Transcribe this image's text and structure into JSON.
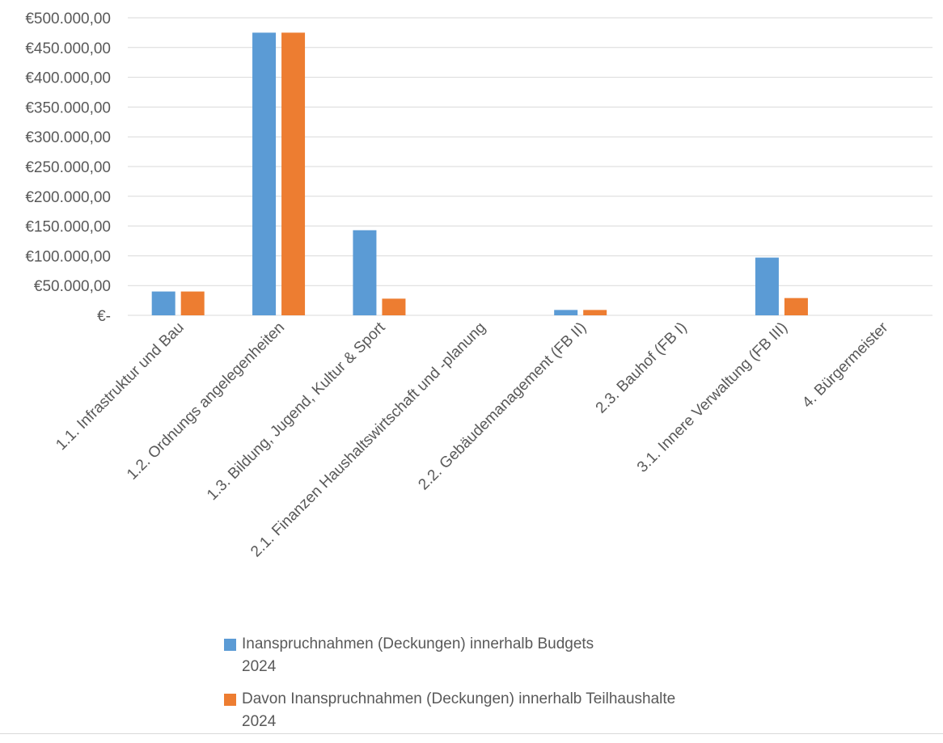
{
  "chart_data": {
    "type": "bar",
    "categories": [
      "1.1. Infrastruktur und Bau",
      "1.2. Ordnungs angelegenheiten",
      "1.3. Bildung, Jugend, Kultur & Sport",
      "2.1. Finanzen Haushaltswirtschaft  und -planung",
      "2.2. Gebäudemanagement (FB II)",
      "2.3. Bauhof (FB I)",
      "3.1. Innere Verwaltung (FB III)",
      "4. Bürgermeister"
    ],
    "series": [
      {
        "name": "Inanspruchnahmen (Deckungen) innerhalb Budgets 2024",
        "color": "#5B9BD5",
        "values": [
          40000,
          475000,
          143000,
          0,
          9000,
          0,
          97000,
          0
        ]
      },
      {
        "name": "Davon Inanspruchnahmen (Deckungen) innerhalb Teilhaushalte 2024",
        "color": "#ED7D31",
        "values": [
          40000,
          475000,
          28000,
          0,
          9000,
          0,
          29000,
          0
        ]
      }
    ],
    "ylim": [
      0,
      500000
    ],
    "yticks": [
      0,
      50000,
      100000,
      150000,
      200000,
      250000,
      300000,
      350000,
      400000,
      450000,
      500000
    ],
    "ytick_labels": [
      "€-",
      "€50.000,00",
      "€100.000,00",
      "€150.000,00",
      "€200.000,00",
      "€250.000,00",
      "€300.000,00",
      "€350.000,00",
      "€400.000,00",
      "€450.000,00",
      "€500.000,00"
    ],
    "grid": true,
    "legend_position": "bottom",
    "xlabel": "",
    "ylabel": "",
    "title": ""
  },
  "legend": {
    "series_1_line1": "Inanspruchnahmen (Deckungen) innerhalb Budgets",
    "series_1_line2": "2024",
    "series_2_line1": "Davon Inanspruchnahmen (Deckungen) innerhalb Teilhaushalte",
    "series_2_line2": "2024"
  }
}
